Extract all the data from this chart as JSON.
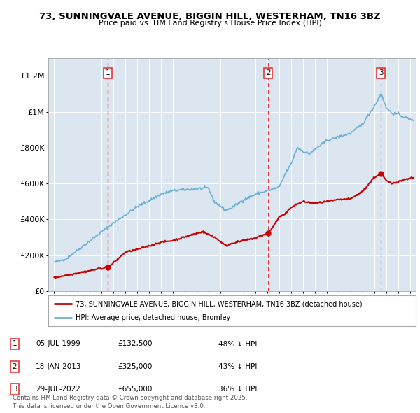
{
  "title": "73, SUNNINGVALE AVENUE, BIGGIN HILL, WESTERHAM, TN16 3BZ",
  "subtitle": "Price paid vs. HM Land Registry's House Price Index (HPI)",
  "xlim": [
    1994.5,
    2025.5
  ],
  "ylim": [
    0,
    1300000
  ],
  "yticks": [
    0,
    200000,
    400000,
    600000,
    800000,
    1000000,
    1200000
  ],
  "ytick_labels": [
    "£0",
    "£200K",
    "£400K",
    "£600K",
    "£800K",
    "£1M",
    "£1.2M"
  ],
  "xticks": [
    1995,
    1996,
    1997,
    1998,
    1999,
    2000,
    2001,
    2002,
    2003,
    2004,
    2005,
    2006,
    2007,
    2008,
    2009,
    2010,
    2011,
    2012,
    2013,
    2014,
    2015,
    2016,
    2017,
    2018,
    2019,
    2020,
    2021,
    2022,
    2023,
    2024,
    2025
  ],
  "hpi_color": "#6baed6",
  "price_color": "#cc0000",
  "vline_color_red": "#ee3333",
  "vline_color_grey": "#aaaacc",
  "sale_dates": [
    1999.51,
    2013.05,
    2022.57
  ],
  "sale_prices": [
    132500,
    325000,
    655000
  ],
  "sale_vline_styles": [
    "red",
    "red",
    "grey"
  ],
  "sale_labels": [
    "1",
    "2",
    "3"
  ],
  "legend_line1": "73, SUNNINGVALE AVENUE, BIGGIN HILL, WESTERHAM, TN16 3BZ (detached house)",
  "legend_line2": "HPI: Average price, detached house, Bromley",
  "table_entries": [
    {
      "num": "1",
      "date": "05-JUL-1999",
      "price": "£132,500",
      "info": "48% ↓ HPI"
    },
    {
      "num": "2",
      "date": "18-JAN-2013",
      "price": "£325,000",
      "info": "43% ↓ HPI"
    },
    {
      "num": "3",
      "date": "29-JUL-2022",
      "price": "£655,000",
      "info": "36% ↓ HPI"
    }
  ],
  "footnote": "Contains HM Land Registry data © Crown copyright and database right 2025.\nThis data is licensed under the Open Government Licence v3.0.",
  "plot_bg_color": "#dce6f1"
}
